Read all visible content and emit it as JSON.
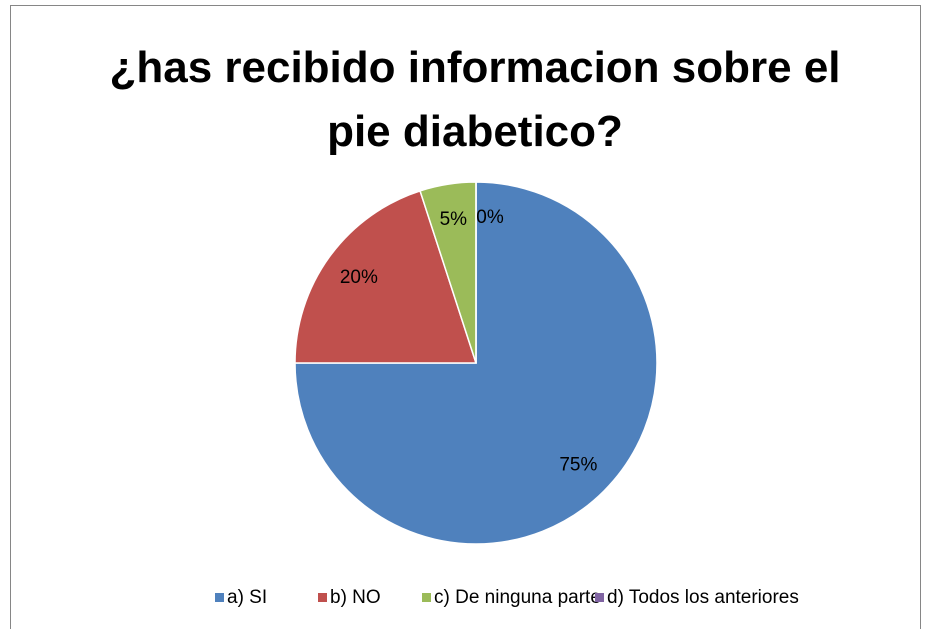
{
  "chart_data": {
    "type": "pie",
    "title": "¿has recibido informacion sobre el pie diabetico?",
    "categories": [
      "a) SI",
      "b) NO",
      "c) De ninguna parte",
      "d) Todos los anteriores"
    ],
    "values": [
      75,
      20,
      5,
      0
    ],
    "value_labels": [
      "75%",
      "20%",
      "5%",
      "0%"
    ],
    "colors": [
      "#4f81bd",
      "#c0504d",
      "#9bbb59",
      "#8064a2"
    ],
    "legend": "bottom"
  }
}
